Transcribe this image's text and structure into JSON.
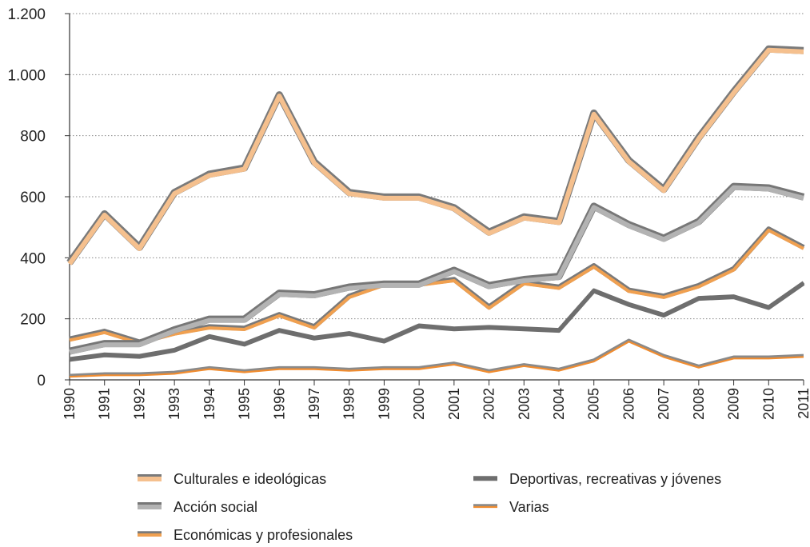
{
  "chart_data": {
    "type": "line",
    "title": "",
    "xlabel": "",
    "ylabel": "",
    "ylim": [
      0,
      1200
    ],
    "y_ticks": [
      0,
      200,
      400,
      600,
      800,
      1000,
      1200
    ],
    "y_tick_labels": [
      "0",
      "200",
      "400",
      "600",
      "800",
      "1.000",
      "1.200"
    ],
    "grid": "horizontal dotted",
    "legend_position": "bottom",
    "x": [
      "1990",
      "1991",
      "1992",
      "1993",
      "1994",
      "1995",
      "1996",
      "1997",
      "1998",
      "1999",
      "2000",
      "2001",
      "2002",
      "2003",
      "2004",
      "2005",
      "2006",
      "2007",
      "2008",
      "2009",
      "2010",
      "2011"
    ],
    "series": [
      {
        "name": "Culturales e ideológicas",
        "color": "#f5c08e",
        "edge_color": "#7a7a7a",
        "style": "thick",
        "values": [
          380,
          540,
          430,
          610,
          670,
          690,
          930,
          710,
          610,
          595,
          595,
          560,
          480,
          530,
          515,
          870,
          715,
          620,
          790,
          940,
          1080,
          1075
        ]
      },
      {
        "name": "Acción social",
        "color": "#b3b3b3",
        "edge_color": "#777777",
        "style": "thick",
        "values": [
          90,
          115,
          115,
          160,
          195,
          195,
          280,
          275,
          300,
          310,
          310,
          355,
          305,
          325,
          335,
          565,
          505,
          460,
          515,
          630,
          625,
          595
        ]
      },
      {
        "name": "Económicas y profesionales",
        "color": "#f0a050",
        "edge_color": "#7a7a7a",
        "style": "medium",
        "values": [
          130,
          155,
          120,
          150,
          170,
          165,
          210,
          170,
          270,
          310,
          310,
          325,
          235,
          315,
          300,
          370,
          290,
          270,
          305,
          360,
          490,
          430
        ]
      },
      {
        "name": "Deportivas, recreativas y jóvenes",
        "color": "#6e6e6e",
        "edge_color": "#6e6e6e",
        "style": "dark",
        "values": [
          65,
          80,
          75,
          95,
          140,
          115,
          160,
          135,
          150,
          125,
          175,
          165,
          170,
          165,
          160,
          290,
          245,
          210,
          265,
          270,
          235,
          315
        ]
      },
      {
        "name": "Varias",
        "color": "#f08c30",
        "edge_color": "#8a8a8a",
        "style": "thin",
        "values": [
          10,
          15,
          15,
          20,
          35,
          25,
          35,
          35,
          30,
          35,
          35,
          50,
          25,
          45,
          30,
          60,
          125,
          75,
          40,
          70,
          70,
          75
        ]
      }
    ],
    "legend": {
      "left": [
        "Culturales e ideológicas",
        "Acción social",
        "Económicas y profesionales"
      ],
      "right": [
        "Deportivas, recreativas y jóvenes",
        "Varias"
      ]
    }
  }
}
